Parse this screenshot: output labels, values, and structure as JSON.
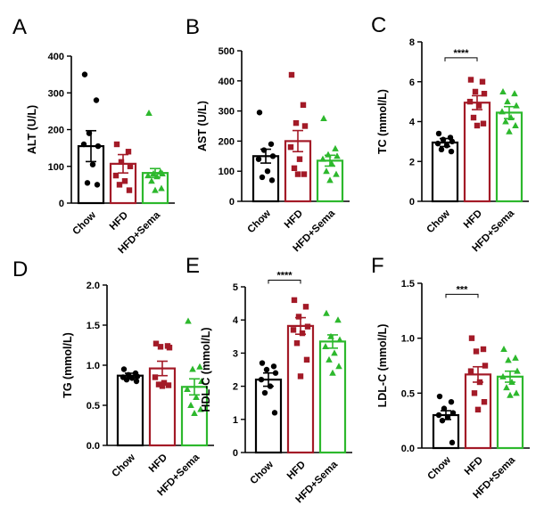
{
  "colors": {
    "Chow": "#000000",
    "HFD": "#a31a27",
    "HFD+Sema": "#2db82d"
  },
  "chart_data": [
    {
      "type": "bar",
      "panel": "A",
      "ylabel": "ALT (U/L)",
      "ylim": [
        0,
        400
      ],
      "ticks": [
        0,
        100,
        200,
        300,
        400
      ],
      "tick_labels": [
        "0",
        "100",
        "200",
        "300",
        "400"
      ],
      "categories": [
        "Chow",
        "HFD",
        "HFD+Sema"
      ],
      "values": [
        155,
        107,
        82
      ],
      "errors": [
        42,
        25,
        12
      ],
      "points": [
        [
          350,
          280,
          190,
          155,
          160,
          105,
          55,
          50
        ],
        [
          160,
          140,
          112,
          100,
          75,
          60,
          50,
          35
        ],
        [
          245,
          85,
          80,
          80,
          75,
          72,
          60,
          40,
          35
        ]
      ],
      "significance": []
    },
    {
      "type": "bar",
      "panel": "B",
      "ylabel": "AST (U/L)",
      "ylim": [
        0,
        500
      ],
      "ticks": [
        0,
        100,
        200,
        300,
        400,
        500
      ],
      "tick_labels": [
        "0",
        "100",
        "200",
        "300",
        "400",
        "500"
      ],
      "categories": [
        "Chow",
        "HFD",
        "HFD+Sema"
      ],
      "values": [
        150,
        200,
        135
      ],
      "errors": [
        23,
        35,
        18
      ],
      "points": [
        [
          295,
          190,
          170,
          150,
          140,
          100,
          80,
          70
        ],
        [
          420,
          320,
          260,
          250,
          180,
          140,
          110,
          90,
          90
        ],
        [
          275,
          175,
          155,
          150,
          140,
          125,
          100,
          90,
          70
        ]
      ],
      "significance": []
    },
    {
      "type": "bar",
      "panel": "C",
      "ylabel": "TC (mmol/L)",
      "ylim": [
        0,
        8
      ],
      "ticks": [
        0,
        2,
        4,
        6,
        8
      ],
      "tick_labels": [
        "0",
        "2",
        "4",
        "6",
        "8"
      ],
      "categories": [
        "Chow",
        "HFD",
        "HFD+Sema"
      ],
      "values": [
        2.95,
        4.95,
        4.45
      ],
      "errors": [
        0.2,
        0.35,
        0.3
      ],
      "points": [
        [
          3.4,
          3.2,
          3.1,
          3.0,
          2.9,
          2.8,
          2.6,
          2.5
        ],
        [
          6.1,
          6.0,
          5.5,
          5.4,
          5.0,
          4.8,
          4.2,
          3.9,
          3.8
        ],
        [
          5.5,
          5.4,
          5.0,
          4.8,
          4.5,
          4.2,
          4.0,
          3.8,
          3.5
        ]
      ],
      "significance": [
        {
          "from": 0,
          "to": 1,
          "label": "****",
          "y": 7.2
        }
      ]
    },
    {
      "type": "bar",
      "panel": "D",
      "ylabel": "TG (mmol/L)",
      "ylim": [
        0,
        2.0
      ],
      "ticks": [
        0,
        0.5,
        1.0,
        1.5,
        2.0
      ],
      "tick_labels": [
        "0.0",
        "0.5",
        "1.0",
        "1.5",
        "2.0"
      ],
      "categories": [
        "Chow",
        "HFD",
        "HFD+Sema"
      ],
      "values": [
        0.87,
        0.96,
        0.73
      ],
      "errors": [
        0.03,
        0.09,
        0.1
      ],
      "points": [
        [
          0.95,
          0.9,
          0.88,
          0.86,
          0.85,
          0.84,
          0.82,
          0.8
        ],
        [
          1.27,
          1.24,
          1.23,
          1.22,
          0.85,
          0.78,
          0.76,
          0.75,
          0.74
        ],
        [
          1.55,
          0.98,
          0.95,
          0.8,
          0.7,
          0.6,
          0.5,
          0.45,
          0.4
        ]
      ],
      "significance": []
    },
    {
      "type": "bar",
      "panel": "E",
      "ylabel": "HDL-C (mmol/L)",
      "ylim": [
        0,
        5
      ],
      "ticks": [
        0,
        1,
        2,
        3,
        4,
        5
      ],
      "tick_labels": [
        "0",
        "1",
        "2",
        "3",
        "4",
        "5"
      ],
      "categories": [
        "Chow",
        "HFD",
        "HFD+Sema"
      ],
      "values": [
        2.2,
        3.82,
        3.35
      ],
      "errors": [
        0.2,
        0.25,
        0.2
      ],
      "points": [
        [
          2.7,
          2.6,
          2.5,
          2.4,
          2.2,
          2.0,
          1.8,
          1.2
        ],
        [
          4.6,
          4.4,
          4.1,
          3.8,
          3.7,
          3.6,
          3.3,
          2.8,
          2.3
        ],
        [
          4.2,
          4.0,
          3.5,
          3.4,
          3.2,
          3.0,
          2.8,
          2.6,
          2.4
        ]
      ],
      "significance": [
        {
          "from": 0,
          "to": 1,
          "label": "****",
          "y": 5.2
        }
      ]
    },
    {
      "type": "bar",
      "panel": "F",
      "ylabel": "LDL-C (mmol/L)",
      "ylim": [
        0,
        1.5
      ],
      "ticks": [
        0,
        0.5,
        1.0,
        1.5
      ],
      "tick_labels": [
        "0.0",
        "0.5",
        "1.0",
        "1.5"
      ],
      "categories": [
        "Chow",
        "HFD",
        "HFD+Sema"
      ],
      "values": [
        0.3,
        0.67,
        0.65
      ],
      "errors": [
        0.04,
        0.07,
        0.05
      ],
      "points": [
        [
          0.47,
          0.42,
          0.36,
          0.32,
          0.3,
          0.28,
          0.25,
          0.05
        ],
        [
          1.0,
          0.9,
          0.88,
          0.75,
          0.7,
          0.6,
          0.5,
          0.42,
          0.35
        ],
        [
          0.9,
          0.82,
          0.8,
          0.7,
          0.65,
          0.6,
          0.55,
          0.5,
          0.48
        ]
      ],
      "significance": [
        {
          "from": 0,
          "to": 1,
          "label": "***",
          "y": 1.4
        }
      ]
    }
  ]
}
